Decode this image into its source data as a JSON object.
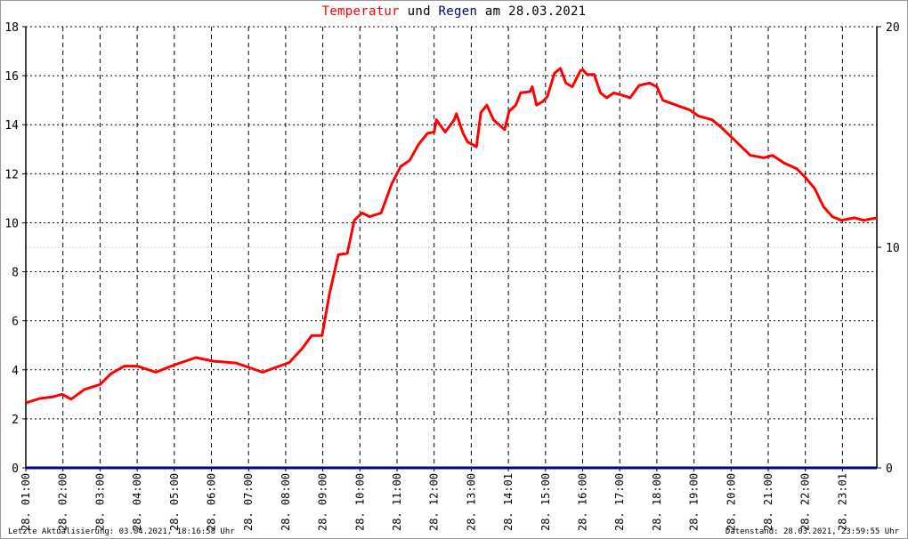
{
  "chart_data": {
    "type": "line",
    "title_parts": [
      {
        "text": "Temperatur",
        "color": "#ff0000"
      },
      {
        "text": " und ",
        "color": "#000000"
      },
      {
        "text": "Regen",
        "color": "#000080"
      },
      {
        "text": " am 28.03.2021",
        "color": "#000000"
      }
    ],
    "x_tick_labels": [
      "28. 01:00",
      "28. 02:00",
      "28. 03:00",
      "28. 04:00",
      "28. 05:00",
      "28. 06:00",
      "28. 07:00",
      "28. 08:00",
      "28. 09:00",
      "28. 10:00",
      "28. 11:00",
      "28. 12:00",
      "28. 13:00",
      "28. 14:01",
      "28. 15:00",
      "28. 16:00",
      "28. 17:00",
      "28. 18:00",
      "28. 19:00",
      "28. 20:00",
      "28. 21:00",
      "28. 22:00",
      "28. 23:01"
    ],
    "xlim_hours": [
      1,
      23.95
    ],
    "y_left": {
      "ylim": [
        0,
        18
      ],
      "ticks": [
        0,
        2,
        4,
        6,
        8,
        10,
        12,
        14,
        16,
        18
      ]
    },
    "y_right": {
      "ylim": [
        0,
        20
      ],
      "ticks": [
        0,
        10,
        20
      ]
    },
    "grid": true,
    "series": [
      {
        "name": "Temperatur",
        "color": "#ff0000",
        "axis": "left",
        "x_hours": [
          1.0,
          1.38,
          1.74,
          1.98,
          2.22,
          2.58,
          3.0,
          3.3,
          3.66,
          4.0,
          4.5,
          5.0,
          5.58,
          6.06,
          6.66,
          7.0,
          7.38,
          7.74,
          8.1,
          8.46,
          8.7,
          8.98,
          9.18,
          9.42,
          9.66,
          9.85,
          10.06,
          10.26,
          10.57,
          10.86,
          11.1,
          11.34,
          11.58,
          11.82,
          12.0,
          12.06,
          12.3,
          12.54,
          12.6,
          12.78,
          12.9,
          13.14,
          13.26,
          13.42,
          13.6,
          13.9,
          14.02,
          14.2,
          14.33,
          14.58,
          14.64,
          14.76,
          14.93,
          15.05,
          15.24,
          15.4,
          15.55,
          15.72,
          15.94,
          16.0,
          16.12,
          16.31,
          16.48,
          16.65,
          16.84,
          17.08,
          17.28,
          17.52,
          17.8,
          18.0,
          18.16,
          18.52,
          18.89,
          19.13,
          19.49,
          19.73,
          19.97,
          20.21,
          20.52,
          20.88,
          21.12,
          21.41,
          21.77,
          22.0,
          22.25,
          22.49,
          22.73,
          22.97,
          23.33,
          23.57,
          23.93
        ],
        "values": [
          2.65,
          2.83,
          2.9,
          3.0,
          2.8,
          3.2,
          3.4,
          3.85,
          4.15,
          4.15,
          3.9,
          4.2,
          4.5,
          4.35,
          4.28,
          4.1,
          3.9,
          4.1,
          4.3,
          4.9,
          5.4,
          5.4,
          7.1,
          8.7,
          8.75,
          10.1,
          10.4,
          10.25,
          10.4,
          11.6,
          12.3,
          12.55,
          13.2,
          13.65,
          13.7,
          14.2,
          13.7,
          14.2,
          14.45,
          13.65,
          13.3,
          13.1,
          14.5,
          14.8,
          14.2,
          13.8,
          14.55,
          14.8,
          15.3,
          15.35,
          15.55,
          14.8,
          14.95,
          15.15,
          16.1,
          16.3,
          15.7,
          15.55,
          16.2,
          16.25,
          16.05,
          16.05,
          15.3,
          15.1,
          15.3,
          15.2,
          15.1,
          15.6,
          15.7,
          15.55,
          15.0,
          14.8,
          14.6,
          14.35,
          14.2,
          13.9,
          13.55,
          13.2,
          12.75,
          12.65,
          12.75,
          12.45,
          12.2,
          11.85,
          11.4,
          10.65,
          10.25,
          10.1,
          10.2,
          10.1,
          10.2
        ]
      },
      {
        "name": "Regen",
        "color": "#000080",
        "axis": "right",
        "values_note_free": true,
        "constant_value": 0
      }
    ]
  },
  "footer": {
    "left": "Letzte Aktualisierung: 03.04.2021, 18:16:58 Uhr",
    "right": "Datenstand: 28.03.2021, 23:59:55 Uhr"
  }
}
